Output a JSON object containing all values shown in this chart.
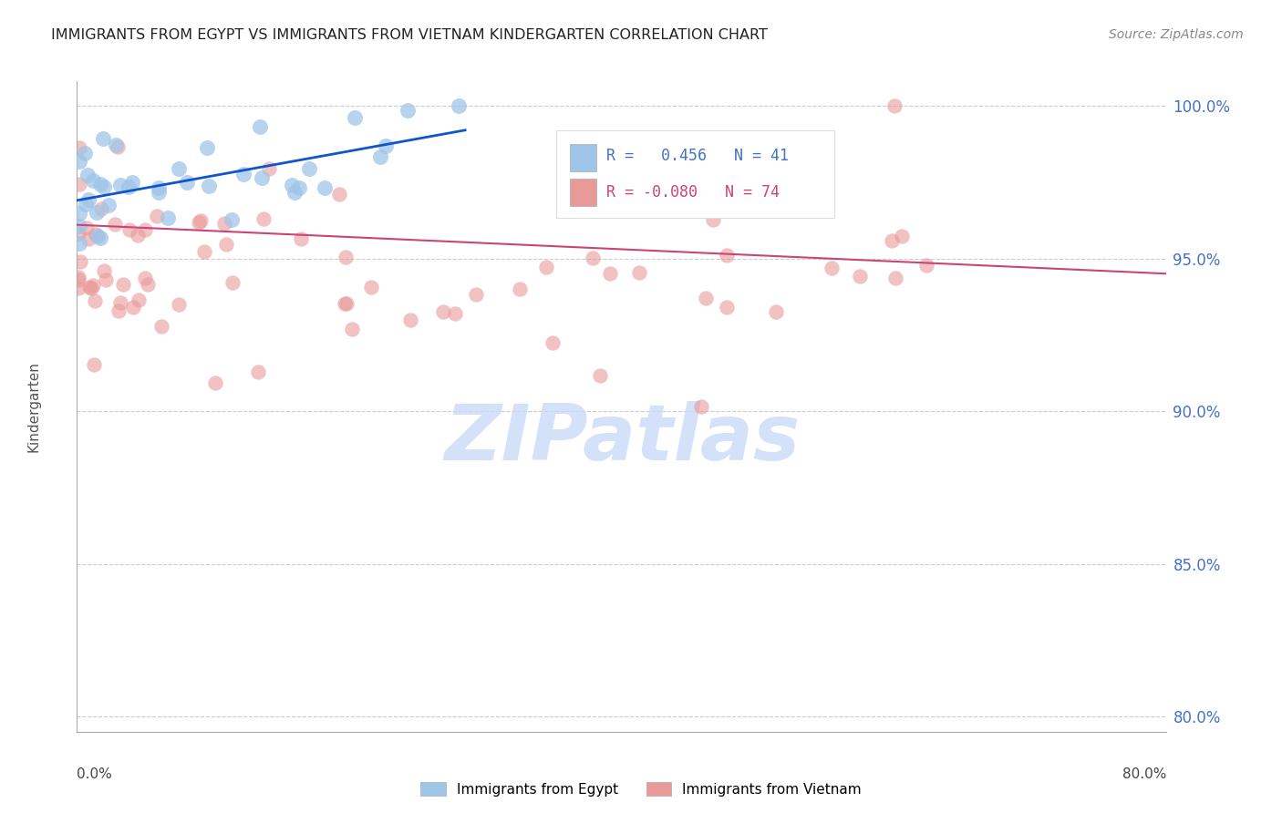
{
  "title": "IMMIGRANTS FROM EGYPT VS IMMIGRANTS FROM VIETNAM KINDERGARTEN CORRELATION CHART",
  "source": "Source: ZipAtlas.com",
  "ylabel": "Kindergarten",
  "egypt_color": "#9fc5e8",
  "vietnam_color": "#ea9999",
  "egypt_line_color": "#1155cc",
  "vietnam_line_color": "#cc4477",
  "egypt_R": 0.456,
  "egypt_N": 41,
  "vietnam_R": -0.08,
  "vietnam_N": 74,
  "right_axis_color": "#4472c4",
  "watermark_color": "#c9daf8",
  "y_ticks": [
    0.8,
    0.85,
    0.9,
    0.95,
    1.0
  ],
  "y_tick_labels": [
    "80.0%",
    "85.0%",
    "90.0%",
    "95.0%",
    "100.0%"
  ],
  "xlim": [
    0.0,
    0.8
  ],
  "ylim": [
    0.795,
    1.008
  ]
}
